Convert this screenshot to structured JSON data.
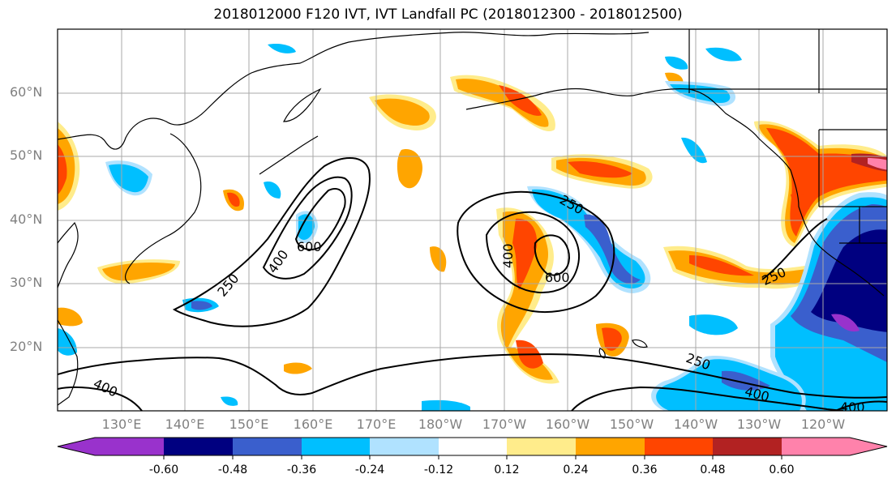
{
  "title": "2018012000 F120 IVT, IVT Landfall PC (2018012300 - 2018012500)",
  "lat_labels": [
    "60°N",
    "50°N",
    "40°N",
    "30°N",
    "20°N"
  ],
  "lon_labels": [
    "130°E",
    "140°E",
    "150°E",
    "160°E",
    "170°E",
    "180°W",
    "170°W",
    "160°W",
    "150°W",
    "140°W",
    "130°W",
    "120°W"
  ],
  "contour_labels": [
    "250",
    "400",
    "600",
    "400",
    "250",
    "600",
    "250",
    "400",
    "250",
    "400",
    "400"
  ],
  "colorbar": {
    "colors": [
      "#9932cc",
      "#000080",
      "#3a5fcd",
      "#00bfff",
      "#b0e2ff",
      "#ffffff",
      "#ffec8b",
      "#ffa500",
      "#ff4500",
      "#b22222",
      "#ff82ab"
    ],
    "tick_labels": [
      "-0.60",
      "-0.48",
      "-0.36",
      "-0.24",
      "-0.12",
      "0.12",
      "0.24",
      "0.36",
      "0.48",
      "0.60"
    ]
  },
  "map_data": {
    "projection": "PlateCarree, 120°E–110°W, 10°N–70°N",
    "contour_levels": [
      250,
      400,
      600
    ],
    "grid": true
  }
}
